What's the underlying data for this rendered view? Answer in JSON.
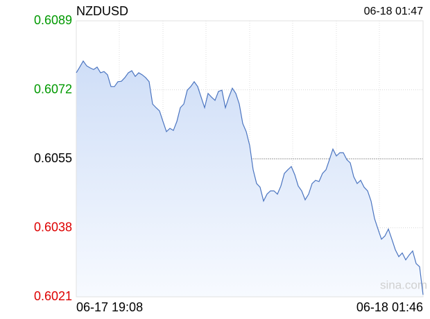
{
  "chart_data": {
    "type": "line",
    "title": "NZDUSD",
    "timestamp": "06-18 01:47",
    "watermark": "sina.com",
    "color": "#4a74c0",
    "ylim": [
      0.6021,
      0.6089
    ],
    "yticks": [
      0.6089,
      0.6072,
      0.6055,
      0.6038,
      0.6021
    ],
    "ytick_colors": [
      "#009900",
      "#009900",
      "#000000",
      "#dd0000",
      "#dd0000"
    ],
    "grid": true,
    "categories": [
      "06-17 19:08",
      null,
      null,
      null,
      null,
      null,
      null,
      null,
      null,
      null,
      null,
      null,
      null,
      null,
      null,
      null,
      null,
      null,
      null,
      null,
      null,
      null,
      null,
      null,
      null,
      null,
      null,
      null,
      null,
      null,
      null,
      null,
      null,
      null,
      null,
      null,
      null,
      null,
      null,
      null,
      null,
      null,
      null,
      null,
      null,
      null,
      null,
      null,
      null,
      null,
      null,
      null,
      null,
      null,
      null,
      null,
      null,
      null,
      null,
      null,
      null,
      null,
      null,
      null,
      null,
      null,
      null,
      null,
      null,
      null,
      null,
      null,
      null,
      null,
      null,
      null,
      null,
      null,
      null,
      null,
      null,
      null,
      null,
      null,
      null,
      null,
      null,
      null,
      null,
      null,
      null,
      null,
      null,
      null,
      null,
      null,
      null,
      null,
      null,
      null,
      "06-18 01:46"
    ],
    "values": [
      0.60762,
      0.60776,
      0.60791,
      0.60779,
      0.60774,
      0.6077,
      0.60776,
      0.60762,
      0.60765,
      0.60757,
      0.60728,
      0.60728,
      0.6074,
      0.60741,
      0.6075,
      0.60762,
      0.60767,
      0.60753,
      0.60762,
      0.60757,
      0.6075,
      0.6074,
      0.60685,
      0.60676,
      0.60668,
      0.60642,
      0.60617,
      0.60625,
      0.6062,
      0.60642,
      0.60676,
      0.60685,
      0.60719,
      0.60728,
      0.6074,
      0.60728,
      0.60702,
      0.60676,
      0.60711,
      0.60702,
      0.60694,
      0.60716,
      0.60719,
      0.60676,
      0.60702,
      0.60724,
      0.60711,
      0.60685,
      0.60637,
      0.60617,
      0.60583,
      0.60523,
      0.60489,
      0.6048,
      0.60446,
      0.60463,
      0.60471,
      0.60471,
      0.60463,
      0.60483,
      0.60514,
      0.60523,
      0.60531,
      0.60511,
      0.60483,
      0.60471,
      0.60449,
      0.60463,
      0.60489,
      0.60497,
      0.60494,
      0.60514,
      0.60523,
      0.60548,
      0.60574,
      0.60557,
      0.60565,
      0.60565,
      0.60548,
      0.6054,
      0.60506,
      0.60489,
      0.60497,
      0.6048,
      0.60471,
      0.60446,
      0.60403,
      0.60377,
      0.60352,
      0.6036,
      0.60377,
      0.60352,
      0.60326,
      0.60309,
      0.60318,
      0.60301,
      0.60313,
      0.60323,
      0.60292,
      0.60284,
      0.60215
    ]
  }
}
